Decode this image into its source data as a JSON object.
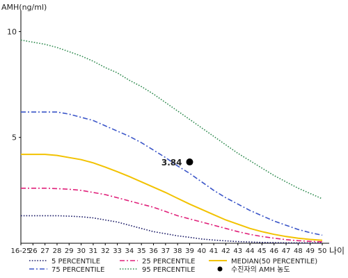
{
  "chart_data": {
    "type": "line",
    "title": "",
    "ylabel": "AMH(ng/ml)",
    "xlabel": "나이",
    "ylim": [
      0,
      11
    ],
    "yticks": [
      {
        "value": 5,
        "label": "5"
      },
      {
        "value": 10,
        "label": "10"
      }
    ],
    "categories": [
      "16-25",
      "26",
      "27",
      "28",
      "29",
      "30",
      "31",
      "32",
      "33",
      "34",
      "35",
      "36",
      "37",
      "38",
      "39",
      "40",
      "41",
      "42",
      "43",
      "44",
      "45",
      "46",
      "47",
      "48",
      "49",
      "50"
    ],
    "grid": false,
    "legend": "bottom",
    "series": [
      {
        "name": "5 PERCENTILE",
        "color": "#1a1a66",
        "style": "dotted",
        "values": [
          1.3,
          1.3,
          1.3,
          1.3,
          1.28,
          1.25,
          1.2,
          1.1,
          1.0,
          0.85,
          0.7,
          0.55,
          0.45,
          0.35,
          0.28,
          0.2,
          0.15,
          0.11,
          0.08,
          0.06,
          0.04,
          0.03,
          0.02,
          0.02,
          0.02,
          0.02
        ]
      },
      {
        "name": "25 PERCENTILE",
        "color": "#e0207a",
        "style": "dash-dot",
        "values": [
          2.6,
          2.6,
          2.6,
          2.58,
          2.55,
          2.5,
          2.4,
          2.3,
          2.15,
          2.0,
          1.85,
          1.7,
          1.5,
          1.3,
          1.15,
          1.0,
          0.85,
          0.7,
          0.55,
          0.42,
          0.32,
          0.24,
          0.17,
          0.12,
          0.09,
          0.07
        ]
      },
      {
        "name": "MEDIAN(50 PERCENTILE)",
        "color": "#f2c200",
        "style": "solid",
        "values": [
          4.2,
          4.2,
          4.2,
          4.15,
          4.05,
          3.95,
          3.8,
          3.6,
          3.38,
          3.15,
          2.9,
          2.65,
          2.4,
          2.12,
          1.85,
          1.6,
          1.35,
          1.1,
          0.9,
          0.7,
          0.55,
          0.42,
          0.32,
          0.24,
          0.18,
          0.14
        ]
      },
      {
        "name": "75 PERCENTILE",
        "color": "#3a55c8",
        "style": "dash-dot",
        "values": [
          6.2,
          6.2,
          6.2,
          6.2,
          6.1,
          5.95,
          5.8,
          5.55,
          5.3,
          5.05,
          4.75,
          4.4,
          4.05,
          3.65,
          3.3,
          2.9,
          2.5,
          2.15,
          1.85,
          1.55,
          1.3,
          1.05,
          0.85,
          0.65,
          0.5,
          0.38
        ]
      },
      {
        "name": "95 PERCENTILE",
        "color": "#2e8a4e",
        "style": "dotted",
        "values": [
          9.6,
          9.5,
          9.4,
          9.25,
          9.05,
          8.85,
          8.6,
          8.3,
          8.05,
          7.7,
          7.4,
          7.05,
          6.65,
          6.25,
          5.85,
          5.45,
          5.05,
          4.65,
          4.25,
          3.9,
          3.55,
          3.2,
          2.9,
          2.6,
          2.35,
          2.1
        ]
      }
    ],
    "highlight": {
      "name": "수진자의 AMH 농도",
      "category": "39",
      "value": 3.84,
      "label": "3.84",
      "color": "#000000"
    }
  }
}
